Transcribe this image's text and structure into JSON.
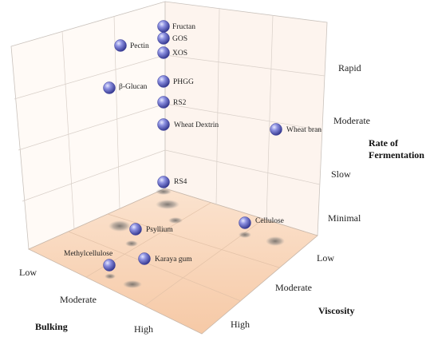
{
  "chart_data": {
    "type": "scatter",
    "title": "",
    "axes": {
      "bulking": {
        "title": "Bulking",
        "ticks": [
          "Low",
          "Moderate",
          "High"
        ]
      },
      "viscosity": {
        "title": "Viscosity",
        "ticks": [
          "Low",
          "Moderate",
          "High"
        ]
      },
      "fermentation": {
        "title_lines": [
          "Rate of",
          "Fermentation"
        ],
        "ticks": [
          "Minimal",
          "Slow",
          "Moderate",
          "Rapid"
        ]
      }
    },
    "points": [
      {
        "label": "Fructan",
        "bulking": "Low",
        "viscosity": "Low",
        "fermentation": "Rapid"
      },
      {
        "label": "GOS",
        "bulking": "Low",
        "viscosity": "Low",
        "fermentation": "Rapid"
      },
      {
        "label": "XOS",
        "bulking": "Low",
        "viscosity": "Low",
        "fermentation": "Rapid"
      },
      {
        "label": "Pectin",
        "bulking": "Low",
        "viscosity": "High",
        "fermentation": "Rapid"
      },
      {
        "label": "β-Glucan",
        "bulking": "Low",
        "viscosity": "High",
        "fermentation": "Moderate"
      },
      {
        "label": "PHGG",
        "bulking": "Low",
        "viscosity": "Low",
        "fermentation": "Moderate"
      },
      {
        "label": "RS2",
        "bulking": "Low",
        "viscosity": "Low",
        "fermentation": "Moderate"
      },
      {
        "label": "Wheat Dextrin",
        "bulking": "Low",
        "viscosity": "Low",
        "fermentation": "Moderate"
      },
      {
        "label": "Wheat bran",
        "bulking": "High",
        "viscosity": "Low",
        "fermentation": "Moderate"
      },
      {
        "label": "RS4",
        "bulking": "Low",
        "viscosity": "Low",
        "fermentation": "Slow"
      },
      {
        "label": "Cellulose",
        "bulking": "High",
        "viscosity": "Low",
        "fermentation": "Minimal"
      },
      {
        "label": "Psyllium",
        "bulking": "Moderate",
        "viscosity": "High",
        "fermentation": "Minimal"
      },
      {
        "label": "Methylcellulose",
        "bulking": "High",
        "viscosity": "High",
        "fermentation": "Minimal"
      },
      {
        "label": "Karaya gum",
        "bulking": "Moderate",
        "viscosity": "High",
        "fermentation": "Minimal"
      }
    ],
    "grid": true,
    "colors": {
      "sphere": "#5a5fc0",
      "floor": "#f7cfae",
      "walls": "#fdf3ec",
      "grid": "#d8cfc8"
    }
  }
}
